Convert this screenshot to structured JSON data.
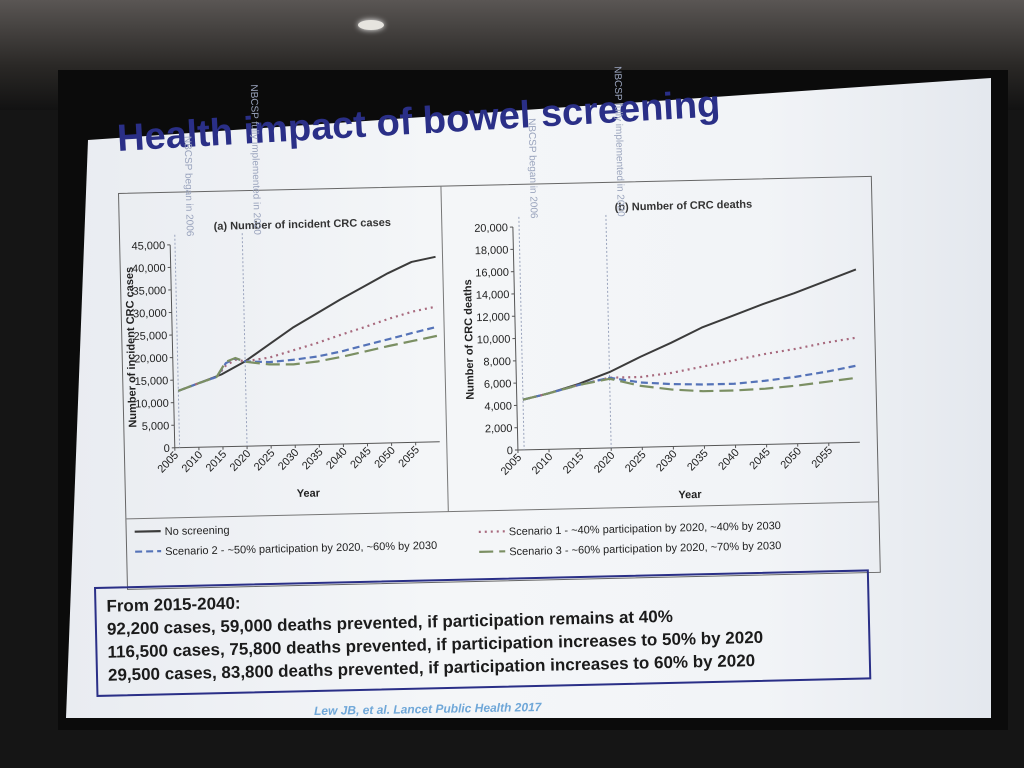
{
  "slide": {
    "title": "Health impact of bowel screening",
    "citation": "Lew JB, et al. Lancet Public Health 2017"
  },
  "notes": {
    "heading": "From 2015-2040:",
    "lines": [
      "92,200 cases, 59,000 deaths prevented, if participation remains at 40%",
      "116,500 cases, 75,800 deaths prevented, if participation increases to 50% by 2020",
      "29,500 cases, 83,800 deaths prevented, if participation increases to 60% by 2020"
    ]
  },
  "colors": {
    "title": "#2a2f87",
    "no_screening": "#3b3b3b",
    "scenario1": "#a86a7e",
    "scenario2": "#5573b8",
    "scenario3": "#7b8f63",
    "annotation": "#9aa4bd"
  },
  "legend": {
    "items": [
      {
        "key": "no_screening",
        "label": "No screening"
      },
      {
        "key": "scenario1",
        "label": "Scenario 1 - ~40% participation by 2020, ~40% by 2030"
      },
      {
        "key": "scenario2",
        "label": "Scenario 2 - ~50% participation by 2020, ~60% by 2030"
      },
      {
        "key": "scenario3",
        "label": "Scenario 3  - ~60% participation by 2020, ~70% by 2030"
      }
    ]
  },
  "chart_data": [
    {
      "type": "line",
      "title": "(a) Number of incident CRC cases",
      "xlabel": "Year",
      "ylabel": "Number of incident CRC cases",
      "xlim": [
        2005,
        2060
      ],
      "ylim": [
        0,
        45000
      ],
      "xticks": [
        2005,
        2010,
        2015,
        2020,
        2025,
        2030,
        2035,
        2040,
        2045,
        2050,
        2055
      ],
      "yticks": [
        0,
        5000,
        10000,
        15000,
        20000,
        25000,
        30000,
        35000,
        40000,
        45000
      ],
      "ytick_labels": [
        "0",
        "5,000",
        "10,000",
        "15,000",
        "20,000",
        "25,000",
        "30,000",
        "35,000",
        "40,000",
        "45,000"
      ],
      "grid": false,
      "annotations": [
        {
          "x": 2006,
          "text": "NBCSP began in 2006"
        },
        {
          "x": 2020,
          "text": "NBCSP fully implemented in 2020"
        }
      ],
      "series": [
        {
          "key": "no_screening",
          "name": "No screening",
          "x": [
            2006,
            2010,
            2015,
            2020,
            2025,
            2030,
            2035,
            2040,
            2045,
            2050,
            2055,
            2060
          ],
          "y": [
            12600,
            14100,
            16000,
            18800,
            22400,
            26000,
            29000,
            32000,
            34800,
            37600,
            40000,
            41000
          ]
        },
        {
          "key": "scenario1",
          "name": "Scenario 1 - ~40% participation by 2020, ~40% by 2030",
          "x": [
            2006,
            2010,
            2014,
            2016,
            2018,
            2020,
            2025,
            2030,
            2035,
            2040,
            2045,
            2050,
            2055,
            2060
          ],
          "y": [
            12600,
            14100,
            15500,
            18000,
            19200,
            18800,
            19500,
            21000,
            22500,
            24200,
            25800,
            27500,
            29000,
            30000
          ]
        },
        {
          "key": "scenario2",
          "name": "Scenario 2 - ~50% participation by 2020, ~60% by 2030",
          "x": [
            2006,
            2010,
            2014,
            2016,
            2018,
            2020,
            2025,
            2030,
            2035,
            2040,
            2045,
            2050,
            2055,
            2060
          ],
          "y": [
            12600,
            14100,
            15500,
            18500,
            19500,
            18800,
            18500,
            18900,
            19500,
            20500,
            21800,
            23000,
            24300,
            25500
          ]
        },
        {
          "key": "scenario3",
          "name": "Scenario 3  - ~60% participation by 2020, ~70% by 2030",
          "x": [
            2006,
            2010,
            2014,
            2016,
            2018,
            2020,
            2025,
            2030,
            2035,
            2040,
            2045,
            2050,
            2055,
            2060
          ],
          "y": [
            12600,
            14100,
            15500,
            18800,
            19600,
            18700,
            18000,
            17900,
            18400,
            19300,
            20400,
            21500,
            22500,
            23500
          ]
        }
      ]
    },
    {
      "type": "line",
      "title": "(b) Number of CRC deaths",
      "xlabel": "Year",
      "ylabel": "Number of CRC deaths",
      "xlim": [
        2005,
        2060
      ],
      "ylim": [
        0,
        20000
      ],
      "xticks": [
        2005,
        2010,
        2015,
        2020,
        2025,
        2030,
        2035,
        2040,
        2045,
        2050,
        2055
      ],
      "yticks": [
        0,
        2000,
        4000,
        6000,
        8000,
        10000,
        12000,
        14000,
        16000,
        18000,
        20000
      ],
      "ytick_labels": [
        "0",
        "2,000",
        "4,000",
        "6,000",
        "8,000",
        "10,000",
        "12,000",
        "14,000",
        "16,000",
        "18,000",
        "20,000"
      ],
      "grid": false,
      "annotations": [
        {
          "x": 2006,
          "text": "NBCSP began in 2006"
        },
        {
          "x": 2020,
          "text": "NBCSP fully implemented in 2020"
        }
      ],
      "series": [
        {
          "key": "no_screening",
          "name": "No screening",
          "x": [
            2006,
            2010,
            2015,
            2020,
            2025,
            2030,
            2035,
            2040,
            2045,
            2050,
            2055,
            2060
          ],
          "y": [
            4500,
            5000,
            5800,
            6800,
            8100,
            9300,
            10600,
            11600,
            12600,
            13500,
            14500,
            15500
          ]
        },
        {
          "key": "scenario1",
          "name": "Scenario 1 - ~40% participation by 2020, ~40% by 2030",
          "x": [
            2006,
            2010,
            2015,
            2020,
            2025,
            2030,
            2035,
            2040,
            2045,
            2050,
            2055,
            2060
          ],
          "y": [
            4500,
            5000,
            5700,
            6300,
            6300,
            6600,
            7100,
            7600,
            8100,
            8500,
            9000,
            9400
          ]
        },
        {
          "key": "scenario2",
          "name": "Scenario 2 - ~50% participation by 2020, ~60% by 2030",
          "x": [
            2006,
            2010,
            2015,
            2020,
            2025,
            2030,
            2035,
            2040,
            2045,
            2050,
            2055,
            2060
          ],
          "y": [
            4500,
            5000,
            5700,
            6300,
            5800,
            5600,
            5500,
            5500,
            5700,
            6000,
            6400,
            6900
          ]
        },
        {
          "key": "scenario3",
          "name": "Scenario 3  - ~60% participation by 2020, ~70% by 2030",
          "x": [
            2006,
            2010,
            2015,
            2020,
            2025,
            2030,
            2035,
            2040,
            2045,
            2050,
            2055,
            2060
          ],
          "y": [
            4500,
            5000,
            5700,
            6200,
            5500,
            5100,
            4900,
            4900,
            5000,
            5200,
            5500,
            5800
          ]
        }
      ]
    }
  ]
}
